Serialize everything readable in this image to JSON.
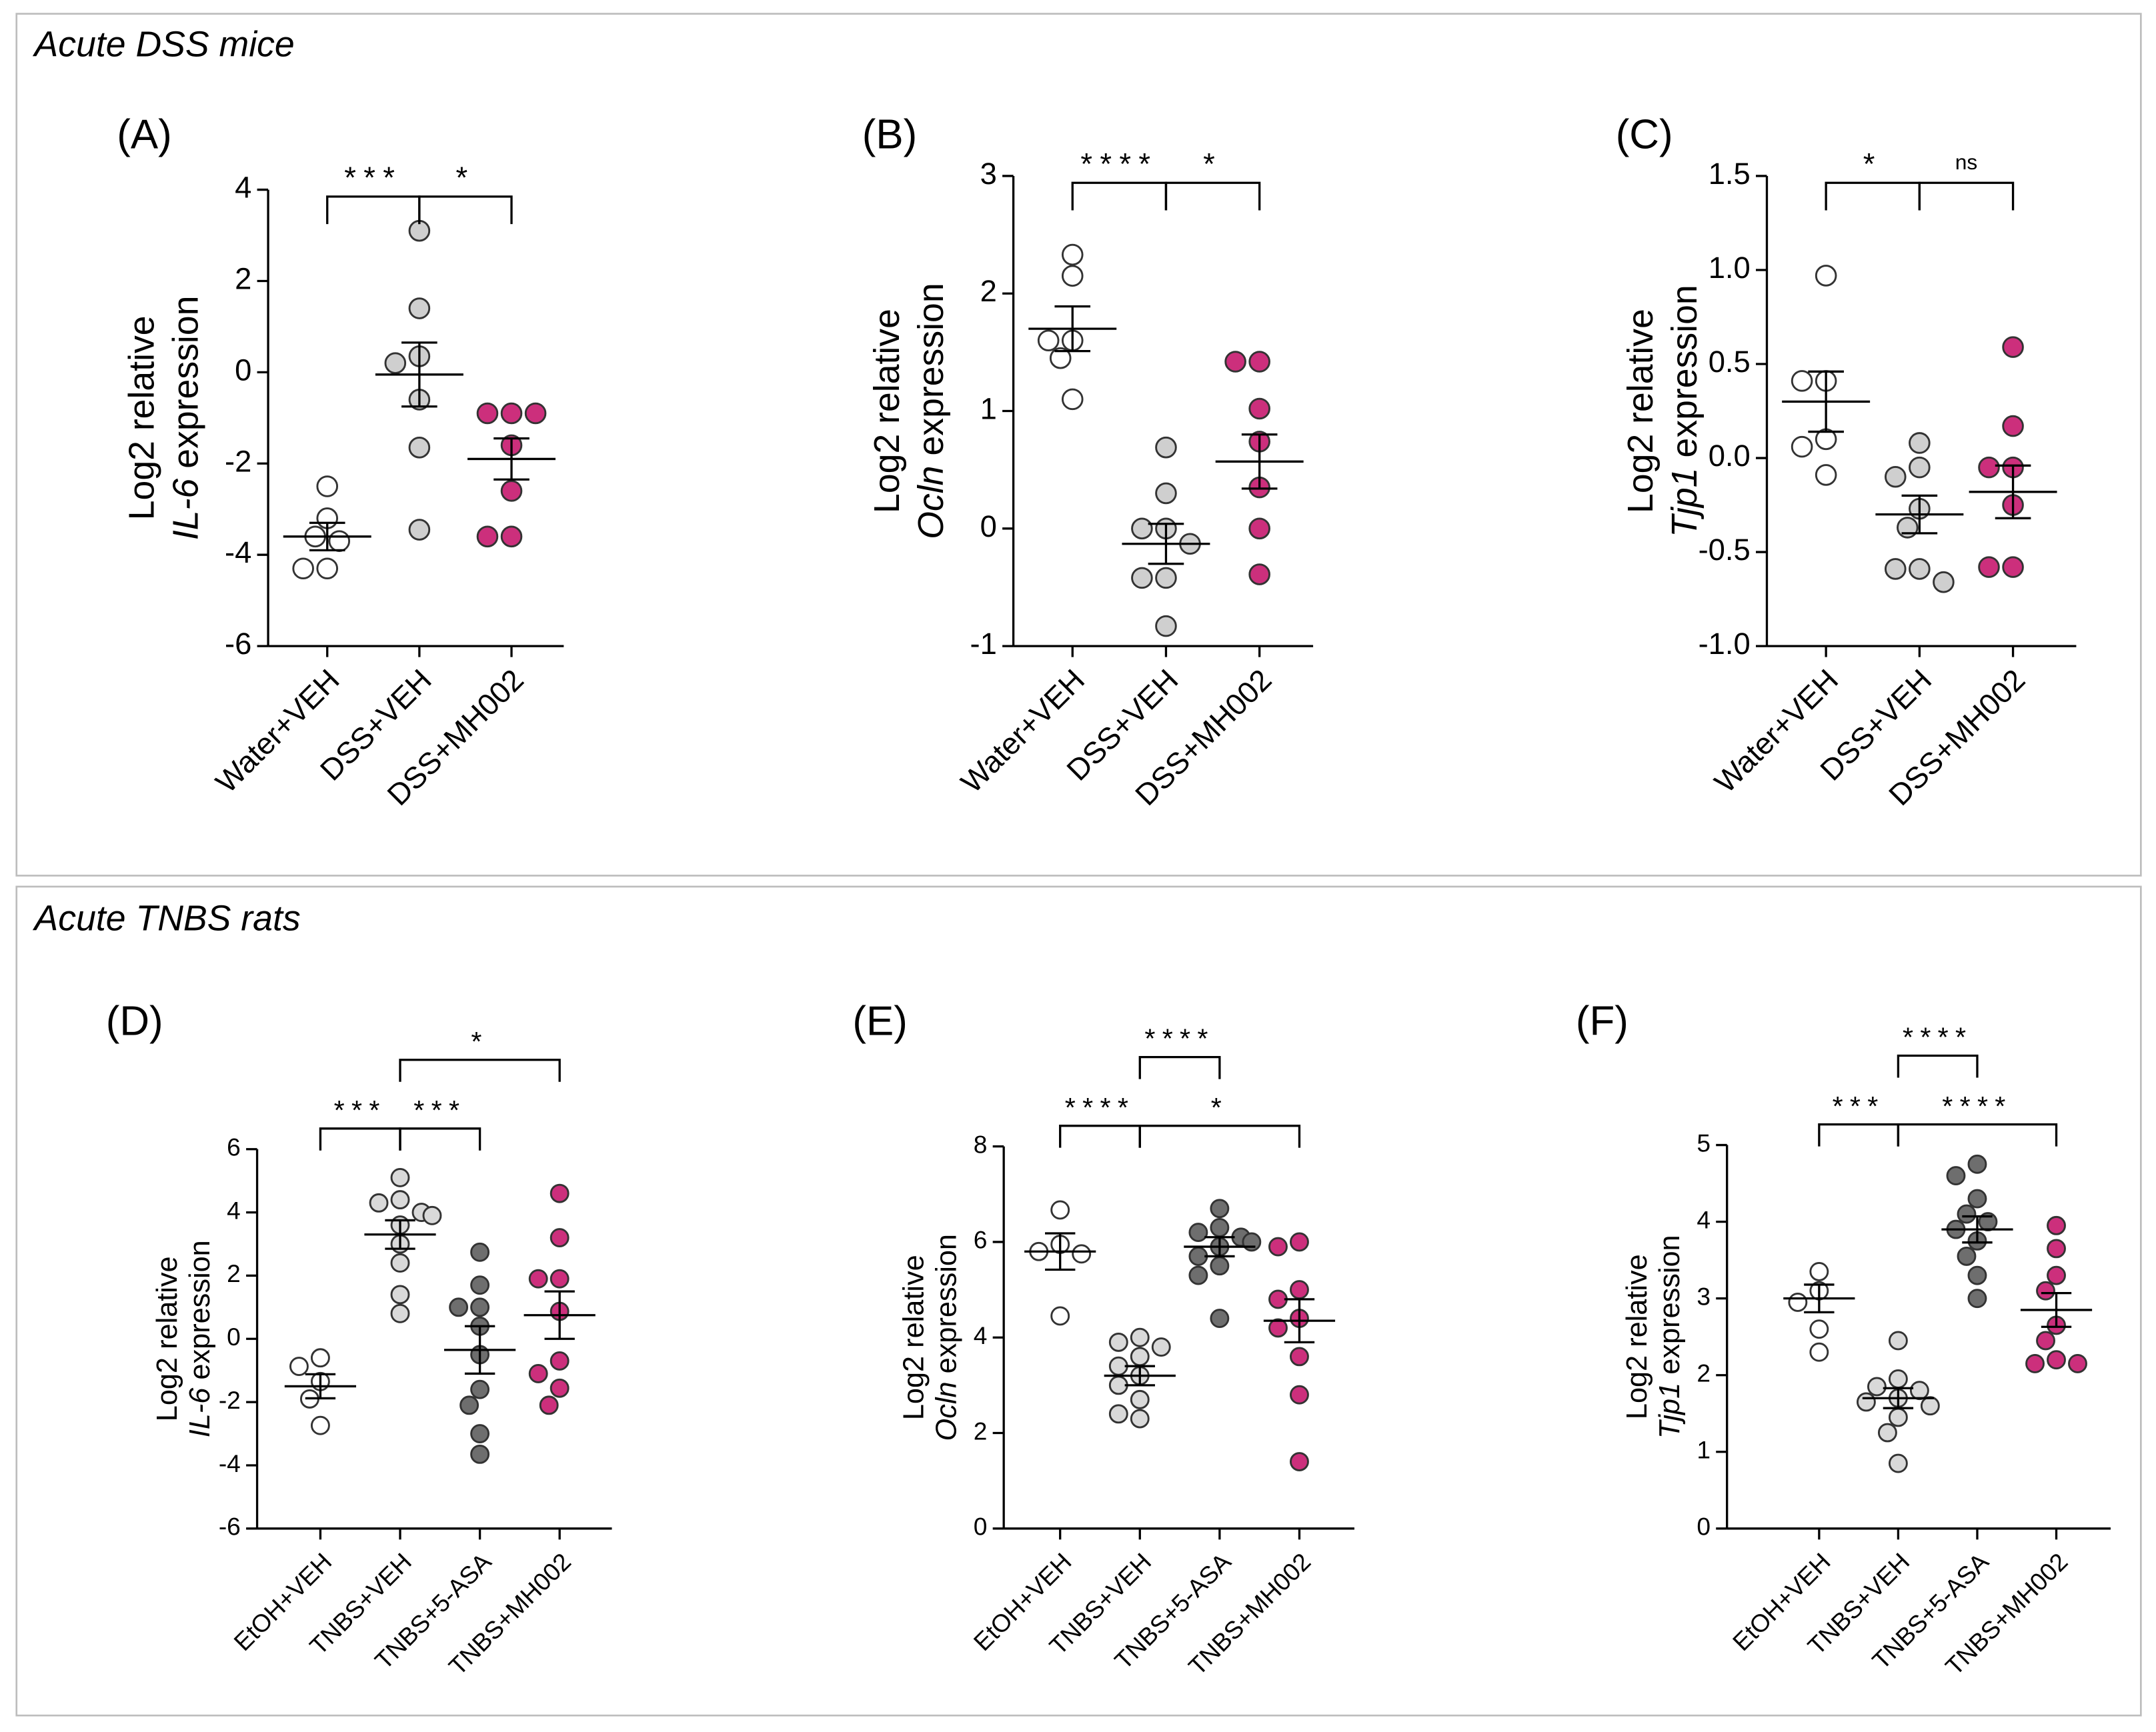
{
  "sections": [
    {
      "title": "Acute DSS mice"
    },
    {
      "title": "Acute TNBS rats"
    }
  ],
  "chart_data": [
    {
      "type": "dot",
      "panel": "(A)",
      "ylabel": "Log2 relative",
      "ylabel_gene": "IL-6",
      "ylabel_suffix": "expression",
      "ylim": [
        -6,
        4
      ],
      "yticks": [
        -6,
        -4,
        -2,
        0,
        2,
        4
      ],
      "series": [
        {
          "name": "Water+VEH",
          "color": "#ffffff",
          "values": [
            -2.5,
            -3.2,
            -3.6,
            -3.7,
            -4.3,
            -4.3
          ],
          "mean": -3.6,
          "sem": 0.3
        },
        {
          "name": "DSS+VEH",
          "color": "#cfcfcf",
          "values": [
            3.1,
            1.4,
            0.35,
            0.2,
            -0.6,
            -1.65,
            -3.45
          ],
          "mean": -0.05,
          "sem": 0.7
        },
        {
          "name": "DSS+MH002",
          "color": "#cc2f7c",
          "values": [
            -0.9,
            -0.9,
            -0.9,
            -1.6,
            -2.6,
            -3.6,
            -3.6
          ],
          "mean": -1.9,
          "sem": 0.45
        }
      ],
      "comparisons": [
        {
          "from": "Water+VEH",
          "to": "DSS+VEH",
          "label": "***"
        },
        {
          "from": "DSS+VEH",
          "to": "DSS+MH002",
          "label": "*"
        }
      ]
    },
    {
      "type": "dot",
      "panel": "(B)",
      "ylabel": "Log2 relative",
      "ylabel_gene": "Ocln",
      "ylabel_suffix": "expression",
      "ylim": [
        -1,
        3
      ],
      "yticks": [
        -1,
        0,
        1,
        2,
        3
      ],
      "series": [
        {
          "name": "Water+VEH",
          "color": "#ffffff",
          "values": [
            2.33,
            2.15,
            1.6,
            1.6,
            1.45,
            1.1
          ],
          "mean": 1.7,
          "sem": 0.19
        },
        {
          "name": "DSS+VEH",
          "color": "#cfcfcf",
          "values": [
            0.69,
            0.3,
            0.0,
            0.0,
            -0.13,
            -0.42,
            -0.42,
            -0.83
          ],
          "mean": -0.13,
          "sem": 0.17
        },
        {
          "name": "DSS+MH002",
          "color": "#cc2f7c",
          "values": [
            1.42,
            1.42,
            1.02,
            0.74,
            0.35,
            0.0,
            -0.39
          ],
          "mean": 0.57,
          "sem": 0.23
        }
      ],
      "comparisons": [
        {
          "from": "Water+VEH",
          "to": "DSS+VEH",
          "label": "****"
        },
        {
          "from": "DSS+VEH",
          "to": "DSS+MH002",
          "label": "*"
        }
      ]
    },
    {
      "type": "dot",
      "panel": "(C)",
      "ylabel": "Log2 relative",
      "ylabel_gene": "Tjp1",
      "ylabel_suffix": "expression",
      "ylim": [
        -1,
        1.5
      ],
      "yticks": [
        {
          "value": -1,
          "label": "-1.0"
        },
        -0.5,
        {
          "value": 0,
          "label": "0.0"
        },
        0.5,
        {
          "value": 1,
          "label": "1.0"
        },
        1.5
      ],
      "series": [
        {
          "name": "Water+VEH",
          "color": "#ffffff",
          "values": [
            0.97,
            0.41,
            0.41,
            0.1,
            0.06,
            -0.09
          ],
          "mean": 0.3,
          "sem": 0.16
        },
        {
          "name": "DSS+VEH",
          "color": "#cfcfcf",
          "values": [
            0.08,
            -0.05,
            -0.1,
            -0.27,
            -0.37,
            -0.59,
            -0.59,
            -0.66
          ],
          "mean": -0.3,
          "sem": 0.1
        },
        {
          "name": "DSS+MH002",
          "color": "#cc2f7c",
          "values": [
            0.59,
            0.17,
            -0.05,
            -0.05,
            -0.25,
            -0.58,
            -0.58
          ],
          "mean": -0.18,
          "sem": 0.14
        }
      ],
      "comparisons": [
        {
          "from": "Water+VEH",
          "to": "DSS+VEH",
          "label": "*"
        },
        {
          "from": "DSS+VEH",
          "to": "DSS+MH002",
          "label": "ns"
        }
      ]
    },
    {
      "type": "dot",
      "panel": "(D)",
      "ylabel": "Log2 relative",
      "ylabel_gene": "IL-6",
      "ylabel_suffix": "expression",
      "ylim": [
        -6,
        6
      ],
      "yticks": [
        -6,
        -4,
        -2,
        0,
        2,
        4,
        6
      ],
      "series": [
        {
          "name": "EtOH+VEH",
          "color": "#ffffff",
          "values": [
            -0.6,
            -0.87,
            -1.35,
            -1.9,
            -2.74
          ],
          "mean": -1.5,
          "sem": 0.38
        },
        {
          "name": "TNBS+VEH",
          "color": "#d9d9d9",
          "values": [
            5.1,
            4.4,
            4.3,
            4.0,
            3.9,
            3.6,
            3.0,
            2.4,
            1.4,
            0.8
          ],
          "mean": 3.3,
          "sem": 0.45
        },
        {
          "name": "TNBS+5-ASA",
          "color": "#6e6e6e",
          "values": [
            2.74,
            1.7,
            1.0,
            1.0,
            0.4,
            -0.5,
            -1.6,
            -2.1,
            -3.0,
            -3.65
          ],
          "mean": -0.35,
          "sem": 0.75
        },
        {
          "name": "TNBS+MH002",
          "color": "#cc2f7c",
          "values": [
            4.6,
            3.2,
            1.9,
            1.9,
            0.87,
            -0.7,
            -1.1,
            -1.56,
            -2.1
          ],
          "mean": 0.75,
          "sem": 0.75
        }
      ],
      "comparisons": [
        {
          "from": "EtOH+VEH",
          "to": "TNBS+VEH",
          "label": "***"
        },
        {
          "from": "TNBS+VEH",
          "to": "TNBS+5-ASA",
          "label": "***"
        },
        {
          "from": "TNBS+VEH",
          "to": "TNBS+MH002",
          "label": "*"
        }
      ]
    },
    {
      "type": "dot",
      "panel": "(E)",
      "ylabel": "Log2 relative",
      "ylabel_gene": "Ocln",
      "ylabel_suffix": "expression",
      "ylim": [
        0,
        8
      ],
      "yticks": [
        0,
        2,
        4,
        6,
        8
      ],
      "series": [
        {
          "name": "EtOH+VEH",
          "color": "#ffffff",
          "values": [
            6.67,
            5.95,
            5.8,
            5.75,
            4.45
          ],
          "mean": 5.8,
          "sem": 0.38
        },
        {
          "name": "TNBS+VEH",
          "color": "#d9d9d9",
          "values": [
            4.0,
            3.9,
            3.8,
            3.6,
            3.4,
            3.2,
            3.0,
            2.7,
            2.4,
            2.3
          ],
          "mean": 3.2,
          "sem": 0.2
        },
        {
          "name": "TNBS+5-ASA",
          "color": "#6e6e6e",
          "values": [
            6.7,
            6.3,
            6.2,
            6.1,
            6.0,
            5.9,
            5.7,
            5.5,
            5.3,
            4.4
          ],
          "mean": 5.9,
          "sem": 0.2
        },
        {
          "name": "TNBS+MH002",
          "color": "#cc2f7c",
          "values": [
            6.0,
            5.9,
            5.0,
            4.8,
            4.4,
            4.2,
            3.6,
            2.8,
            1.4
          ],
          "mean": 4.35,
          "sem": 0.45
        }
      ],
      "comparisons": [
        {
          "from": "EtOH+VEH",
          "to": "TNBS+VEH",
          "label": "****"
        },
        {
          "from": "TNBS+VEH",
          "to": "TNBS+MH002",
          "label": "*"
        },
        {
          "from": "TNBS+VEH",
          "to": "TNBS+5-ASA",
          "label": "****"
        }
      ]
    },
    {
      "type": "dot",
      "panel": "(F)",
      "ylabel": "Log2 relative",
      "ylabel_gene": "Tjp1",
      "ylabel_suffix": "expression",
      "ylim": [
        0,
        5
      ],
      "yticks": [
        0,
        1,
        2,
        3,
        4,
        5
      ],
      "series": [
        {
          "name": "EtOH+VEH",
          "color": "#ffffff",
          "values": [
            3.35,
            3.1,
            2.95,
            2.6,
            2.3
          ],
          "mean": 3.0,
          "sem": 0.18
        },
        {
          "name": "TNBS+VEH",
          "color": "#d9d9d9",
          "values": [
            2.45,
            1.95,
            1.85,
            1.8,
            1.7,
            1.65,
            1.6,
            1.45,
            1.25,
            0.85
          ],
          "mean": 1.7,
          "sem": 0.13
        },
        {
          "name": "TNBS+5-ASA",
          "color": "#6e6e6e",
          "values": [
            4.75,
            4.6,
            4.3,
            4.1,
            4.0,
            3.9,
            3.75,
            3.55,
            3.3,
            3.0
          ],
          "mean": 3.9,
          "sem": 0.17
        },
        {
          "name": "TNBS+MH002",
          "color": "#cc2f7c",
          "values": [
            3.95,
            3.65,
            3.3,
            3.1,
            2.65,
            2.45,
            2.2,
            2.15,
            2.15
          ],
          "mean": 2.85,
          "sem": 0.22
        }
      ],
      "comparisons": [
        {
          "from": "EtOH+VEH",
          "to": "TNBS+VEH",
          "label": "***"
        },
        {
          "from": "TNBS+VEH",
          "to": "TNBS+MH002",
          "label": "****"
        },
        {
          "from": "TNBS+VEH",
          "to": "TNBS+5-ASA",
          "label": "****"
        }
      ]
    }
  ]
}
